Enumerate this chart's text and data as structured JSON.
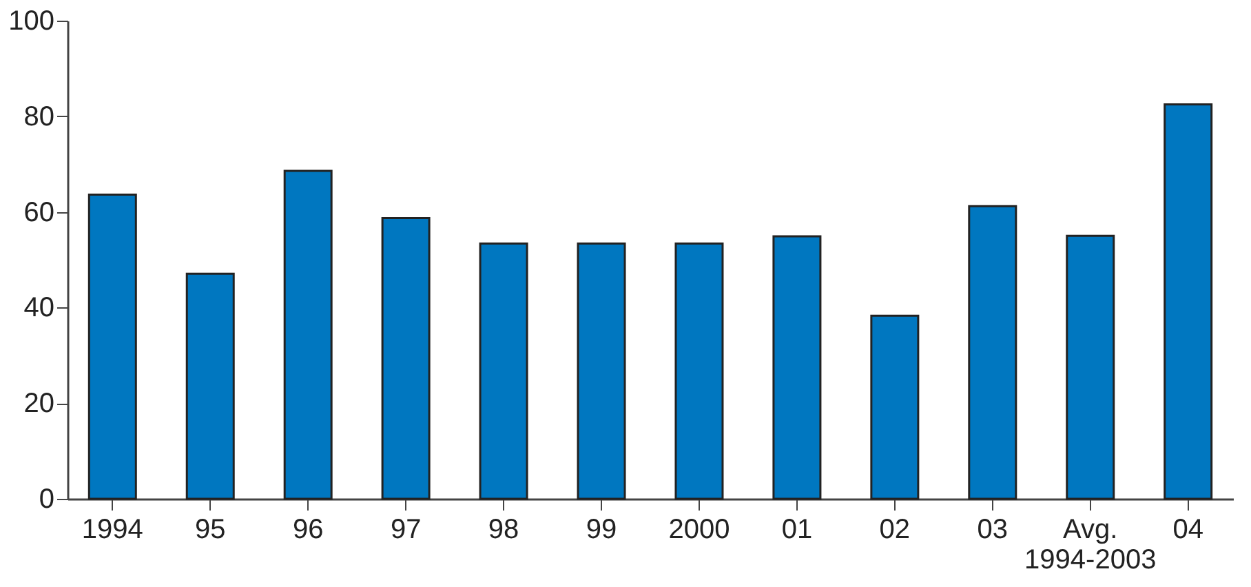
{
  "chart_data": {
    "type": "bar",
    "categories": [
      "1994",
      "95",
      "96",
      "97",
      "98",
      "99",
      "2000",
      "01",
      "02",
      "03",
      "Avg.\n1994-2003",
      "04"
    ],
    "values": [
      63.6,
      47.1,
      68.6,
      58.7,
      53.4,
      53.4,
      53.4,
      54.9,
      38.3,
      61.2,
      55.0,
      82.5
    ],
    "color": "#0077c0",
    "ylim": [
      0,
      100
    ],
    "yticks": [
      0,
      20,
      40,
      60,
      80,
      100
    ],
    "grid": false
  }
}
